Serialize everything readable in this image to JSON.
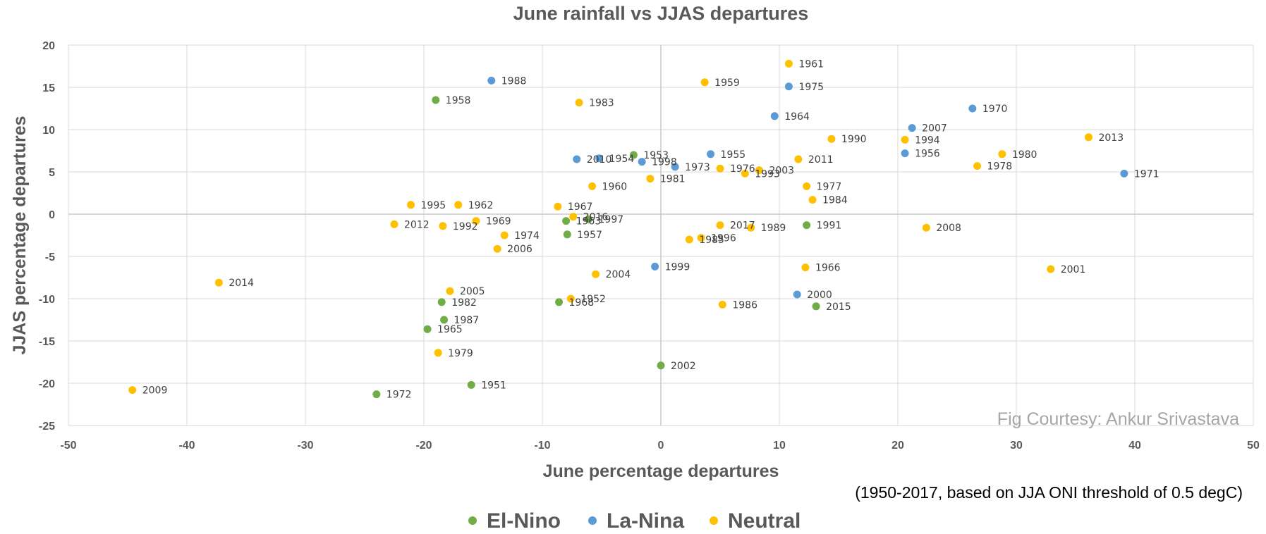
{
  "chart_data": {
    "type": "scatter",
    "title": "June rainfall vs JJAS departures",
    "xlabel": "June percentage departures",
    "ylabel": "JJAS percentage departures",
    "xlim": [
      -50,
      50
    ],
    "ylim": [
      -25,
      20
    ],
    "x_ticks": [
      -50,
      -40,
      -30,
      -20,
      -10,
      0,
      10,
      20,
      30,
      40,
      50
    ],
    "y_ticks": [
      20,
      15,
      10,
      5,
      0,
      -5,
      -10,
      -15,
      -20,
      -25
    ],
    "grid": true,
    "legend_position": "bottom",
    "credit": "Fig Courtesy: Ankur Srivastava",
    "note": "(1950-2017, based on JJA ONI threshold of 0.5 degC)",
    "series": [
      {
        "name": "El-Nino",
        "color": "#70ad47",
        "points": [
          {
            "label": "1951",
            "x": -16.0,
            "y": -20.2
          },
          {
            "label": "1953",
            "x": -2.3,
            "y": 7.0
          },
          {
            "label": "1957",
            "x": -7.9,
            "y": -2.4
          },
          {
            "label": "1958",
            "x": -19.0,
            "y": 13.5
          },
          {
            "label": "1963",
            "x": -8.0,
            "y": -0.8
          },
          {
            "label": "1965",
            "x": -19.7,
            "y": -13.6
          },
          {
            "label": "1968",
            "x": -8.6,
            "y": -10.4
          },
          {
            "label": "1972",
            "x": -24.0,
            "y": -21.3
          },
          {
            "label": "1982",
            "x": -18.5,
            "y": -10.4
          },
          {
            "label": "1987",
            "x": -18.3,
            "y": -12.5
          },
          {
            "label": "1991",
            "x": 12.3,
            "y": -1.3
          },
          {
            "label": "1997",
            "x": -6.1,
            "y": -0.6
          },
          {
            "label": "2002",
            "x": 0.0,
            "y": -17.9
          },
          {
            "label": "2015",
            "x": 13.1,
            "y": -10.9
          }
        ]
      },
      {
        "name": "La-Nina",
        "color": "#5b9bd5",
        "points": [
          {
            "label": "1954",
            "x": -5.2,
            "y": 6.6
          },
          {
            "label": "1955",
            "x": 4.2,
            "y": 7.1
          },
          {
            "label": "1956",
            "x": 20.6,
            "y": 7.2
          },
          {
            "label": "1964",
            "x": 9.6,
            "y": 11.6
          },
          {
            "label": "1970",
            "x": 26.3,
            "y": 12.5
          },
          {
            "label": "1971",
            "x": 39.1,
            "y": 4.8
          },
          {
            "label": "1973",
            "x": 1.2,
            "y": 5.6
          },
          {
            "label": "1975",
            "x": 10.8,
            "y": 15.1
          },
          {
            "label": "1988",
            "x": -14.3,
            "y": 15.8
          },
          {
            "label": "1998",
            "x": -1.6,
            "y": 6.2
          },
          {
            "label": "1999",
            "x": -0.5,
            "y": -6.2
          },
          {
            "label": "2000",
            "x": 11.5,
            "y": -9.5
          },
          {
            "label": "2007",
            "x": 21.2,
            "y": 10.2
          },
          {
            "label": "2010",
            "x": -7.1,
            "y": 6.5
          }
        ]
      },
      {
        "name": "Neutral",
        "color": "#ffc000",
        "points": [
          {
            "label": "1952",
            "x": -7.6,
            "y": -10.0
          },
          {
            "label": "1959",
            "x": 3.7,
            "y": 15.6
          },
          {
            "label": "1960",
            "x": -5.8,
            "y": 3.3
          },
          {
            "label": "1961",
            "x": 10.8,
            "y": 17.8
          },
          {
            "label": "1962",
            "x": -17.1,
            "y": 1.1
          },
          {
            "label": "1966",
            "x": 12.2,
            "y": -6.3
          },
          {
            "label": "1967",
            "x": -8.7,
            "y": 0.9
          },
          {
            "label": "1969",
            "x": -15.6,
            "y": -0.8
          },
          {
            "label": "1974",
            "x": -13.2,
            "y": -2.5
          },
          {
            "label": "1976",
            "x": 5.0,
            "y": 5.4
          },
          {
            "label": "1977",
            "x": 12.3,
            "y": 3.3
          },
          {
            "label": "1978",
            "x": 26.7,
            "y": 5.7
          },
          {
            "label": "1979",
            "x": -18.8,
            "y": -16.4
          },
          {
            "label": "1980",
            "x": 28.8,
            "y": 7.1
          },
          {
            "label": "1981",
            "x": -0.9,
            "y": 4.2
          },
          {
            "label": "1983",
            "x": -6.9,
            "y": 13.2
          },
          {
            "label": "1984",
            "x": 12.8,
            "y": 1.7
          },
          {
            "label": "1985",
            "x": 2.4,
            "y": -3.0
          },
          {
            "label": "1986",
            "x": 5.2,
            "y": -10.7
          },
          {
            "label": "1989",
            "x": 7.6,
            "y": -1.6
          },
          {
            "label": "1990",
            "x": 14.4,
            "y": 8.9
          },
          {
            "label": "1992",
            "x": -18.4,
            "y": -1.4
          },
          {
            "label": "1993",
            "x": 7.1,
            "y": 4.8
          },
          {
            "label": "1994",
            "x": 20.6,
            "y": 8.8
          },
          {
            "label": "1995",
            "x": -21.1,
            "y": 1.1
          },
          {
            "label": "1996",
            "x": 3.4,
            "y": -2.8
          },
          {
            "label": "2001",
            "x": 32.9,
            "y": -6.5
          },
          {
            "label": "2003",
            "x": 8.3,
            "y": 5.2
          },
          {
            "label": "2004",
            "x": -5.5,
            "y": -7.1
          },
          {
            "label": "2005",
            "x": -17.8,
            "y": -9.1
          },
          {
            "label": "2006",
            "x": -13.8,
            "y": -4.1
          },
          {
            "label": "2008",
            "x": 22.4,
            "y": -1.6
          },
          {
            "label": "2009",
            "x": -44.6,
            "y": -20.8
          },
          {
            "label": "2011",
            "x": 11.6,
            "y": 6.5
          },
          {
            "label": "2012",
            "x": -22.5,
            "y": -1.2
          },
          {
            "label": "2013",
            "x": 36.1,
            "y": 9.1
          },
          {
            "label": "2014",
            "x": -37.3,
            "y": -8.1
          },
          {
            "label": "2016",
            "x": -7.4,
            "y": -0.3
          },
          {
            "label": "2017",
            "x": 5.0,
            "y": -1.3
          }
        ]
      }
    ]
  }
}
